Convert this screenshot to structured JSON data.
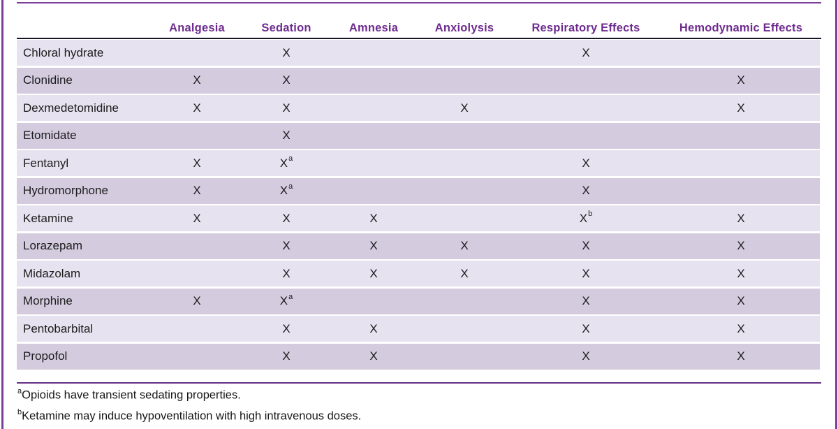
{
  "table": {
    "columns": [
      "Analgesia",
      "Sedation",
      "Amnesia",
      "Anxiolysis",
      "Respiratory Effects",
      "Hemodynamic Effects"
    ],
    "rows": [
      {
        "drug": "Chloral hydrate",
        "cells": [
          "",
          "X",
          "",
          "",
          "X",
          ""
        ]
      },
      {
        "drug": "Clonidine",
        "cells": [
          "X",
          "X",
          "",
          "",
          "",
          "X"
        ]
      },
      {
        "drug": "Dexmedetomidine",
        "cells": [
          "X",
          "X",
          "",
          "X",
          "",
          "X"
        ]
      },
      {
        "drug": "Etomidate",
        "cells": [
          "",
          "X",
          "",
          "",
          "",
          ""
        ]
      },
      {
        "drug": "Fentanyl",
        "cells": [
          "X",
          "Xa",
          "",
          "",
          "X",
          ""
        ]
      },
      {
        "drug": "Hydromorphone",
        "cells": [
          "X",
          "Xa",
          "",
          "",
          "X",
          ""
        ]
      },
      {
        "drug": "Ketamine",
        "cells": [
          "X",
          "X",
          "X",
          "",
          "Xb",
          "X"
        ]
      },
      {
        "drug": "Lorazepam",
        "cells": [
          "",
          "X",
          "X",
          "X",
          "X",
          "X"
        ]
      },
      {
        "drug": "Midazolam",
        "cells": [
          "",
          "X",
          "X",
          "X",
          "X",
          "X"
        ]
      },
      {
        "drug": "Morphine",
        "cells": [
          "X",
          "Xa",
          "",
          "",
          "X",
          "X"
        ]
      },
      {
        "drug": "Pentobarbital",
        "cells": [
          "",
          "X",
          "X",
          "",
          "X",
          "X"
        ]
      },
      {
        "drug": "Propofol",
        "cells": [
          "",
          "X",
          "X",
          "",
          "X",
          "X"
        ]
      }
    ]
  },
  "footnotes": [
    {
      "marker": "a",
      "text": "Opioids have transient sedating properties."
    },
    {
      "marker": "b",
      "text": "Ketamine may induce hypoventilation with high intravenous doses."
    }
  ],
  "colors": {
    "header_text": "#6e2b8f",
    "border_purple": "#7a3f98",
    "separator_dark": "#16162a",
    "row_light": "#e7e2ef",
    "row_dark": "#d4cbdf",
    "body_text": "#1c1c1c"
  }
}
